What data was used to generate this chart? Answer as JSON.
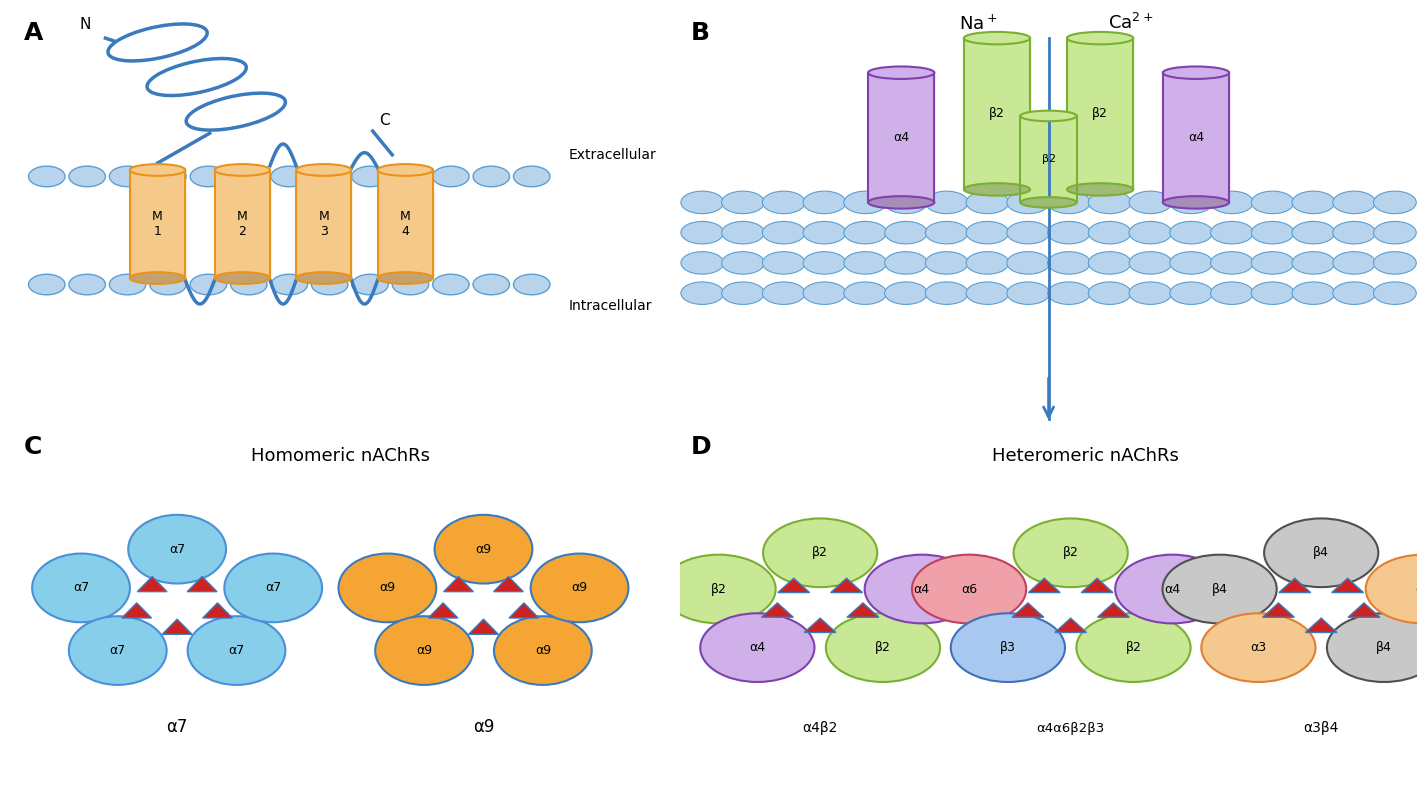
{
  "background_color": "#ffffff",
  "helix_color": "#3a7abf",
  "membrane_bead_color": "#b8d4ec",
  "membrane_bead_edge": "#5a9fd4",
  "cylinder_fill": "#f5c98a",
  "cylinder_edge": "#e8941a",
  "extracellular_text": "Extracellular",
  "intracellular_text": "Intracellular",
  "M_labels": [
    "M\n1",
    "M\n2",
    "M\n3",
    "M\n4"
  ],
  "ion_line_color": "#3a7abf",
  "arrow_color": "#3a7abf",
  "homomeric_title": "Homomeric nAChRs",
  "heteromeric_title": "Heteromeric nAChRs",
  "alpha7_color": "#87ceeb",
  "alpha7_edge": "#4a90d9",
  "alpha9_color": "#f5a533",
  "alpha9_edge": "#3a7abf",
  "triangle_color": "#cc2222",
  "triangle_edge": "#3a7abf",
  "alpha7_label": "α7",
  "alpha9_label": "α9",
  "alpha4beta2_label": "α4β2",
  "alpha4alpha6beta2beta3_label": "α4α6β2β3",
  "alpha3beta4_label": "α3β4",
  "beta2_green": "#c8e896",
  "beta2_green_edge": "#7ab030",
  "alpha4_purple": "#d0b0e8",
  "alpha4_purple_edge": "#8040b0",
  "alpha6_pink": "#f0a0a8",
  "alpha6_pink_edge": "#c04060",
  "beta3_blue": "#a8c8f0",
  "beta3_blue_edge": "#4070c0",
  "alpha3_orange": "#f5c890",
  "alpha3_orange_edge": "#e08030",
  "beta4_gray": "#c8c8c8",
  "beta4_gray_edge": "#505050"
}
